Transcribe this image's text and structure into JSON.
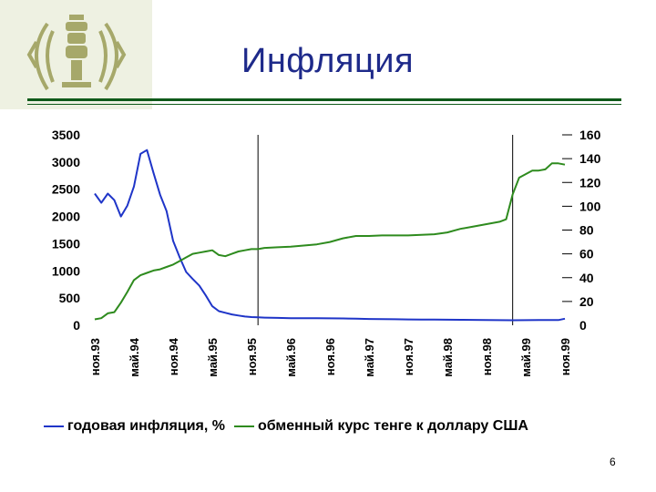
{
  "title": "Инфляция",
  "page_number": "6",
  "colors": {
    "inflation": "#1f35c8",
    "exchange_rate": "#2e8b1e",
    "title": "#1e2a8a",
    "rule": "#0f5a1a",
    "logo": "#a6a86a"
  },
  "logo": {
    "icon": "emblem-icon"
  },
  "chart_data": {
    "type": "line",
    "title": "",
    "x_tick_labels": [
      "ноя.93",
      "май.94",
      "ноя.94",
      "май.95",
      "ноя.95",
      "май.96",
      "ноя.96",
      "май.97",
      "ноя.97",
      "май.98",
      "ноя.98",
      "май.99",
      "ноя.99"
    ],
    "y_left": {
      "ticks": [
        "0",
        "500",
        "1000",
        "1500",
        "2000",
        "2500",
        "3000",
        "3500"
      ],
      "range": [
        0,
        3500
      ]
    },
    "y_right": {
      "ticks": [
        "0",
        "20",
        "40",
        "60",
        "80",
        "100",
        "120",
        "140",
        "160"
      ],
      "range": [
        0,
        160
      ]
    },
    "month_count": 73,
    "reference_lines_at_month": [
      25,
      64
    ],
    "legend_position": "bottom",
    "grid": false,
    "series": [
      {
        "name": "годовая инфляция, %",
        "axis": "left",
        "x": [
          0,
          1,
          2,
          3,
          4,
          5,
          6,
          7,
          8,
          9,
          10,
          11,
          12,
          13,
          14,
          15,
          16,
          17,
          18,
          19,
          20,
          21,
          22,
          23,
          24,
          25,
          26,
          28,
          30,
          32,
          34,
          36,
          38,
          40,
          42,
          44,
          46,
          48,
          50,
          52,
          54,
          56,
          58,
          60,
          62,
          64,
          66,
          68,
          70,
          71,
          72
        ],
        "values": [
          2420,
          2250,
          2420,
          2300,
          2000,
          2200,
          2550,
          3150,
          3220,
          2800,
          2400,
          2100,
          1550,
          1250,
          980,
          850,
          730,
          550,
          350,
          260,
          230,
          200,
          180,
          160,
          150,
          145,
          140,
          135,
          130,
          130,
          130,
          128,
          125,
          120,
          115,
          112,
          110,
          108,
          106,
          104,
          102,
          100,
          98,
          95,
          93,
          92,
          94,
          95,
          96,
          95,
          120
        ]
      },
      {
        "name": "обменный курс тенге к доллару США",
        "axis": "right",
        "x": [
          0,
          1,
          2,
          3,
          4,
          5,
          6,
          7,
          8,
          9,
          10,
          11,
          12,
          13,
          14,
          15,
          16,
          17,
          18,
          19,
          20,
          21,
          22,
          23,
          24,
          25,
          26,
          28,
          30,
          32,
          34,
          36,
          38,
          40,
          42,
          44,
          46,
          48,
          50,
          52,
          54,
          56,
          58,
          60,
          62,
          63,
          64,
          65,
          66,
          67,
          68,
          69,
          70,
          71,
          72
        ],
        "values": [
          5,
          6,
          10,
          11,
          19,
          28,
          38,
          42,
          44,
          46,
          47,
          49,
          51,
          54,
          57,
          60,
          61,
          62,
          63,
          59,
          58,
          60,
          62,
          63,
          64,
          64,
          65,
          65.5,
          66,
          67,
          68,
          70,
          73,
          75,
          75,
          75.5,
          75.5,
          75.5,
          76,
          76.5,
          78,
          81,
          83,
          85,
          87,
          89,
          110,
          124,
          127,
          130,
          130,
          131,
          136,
          136,
          135
        ]
      }
    ]
  }
}
